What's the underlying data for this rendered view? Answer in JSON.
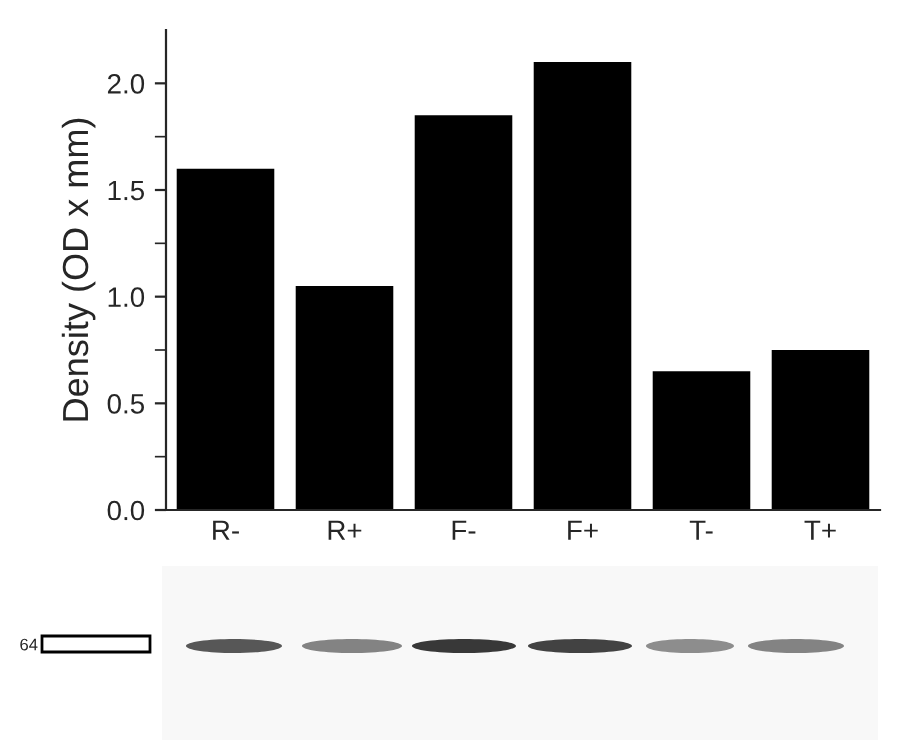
{
  "chart_data": {
    "type": "bar",
    "ylabel": "Density (OD x mm)",
    "categories": [
      "R-",
      "R+",
      "F-",
      "F+",
      "T-",
      "T+"
    ],
    "values": [
      1.6,
      1.05,
      1.85,
      2.1,
      0.65,
      0.75
    ],
    "color": "#000000",
    "ylim": [
      0,
      2.25
    ],
    "yticks": [
      {
        "value": 0,
        "label": "0.0"
      },
      {
        "value": 0.5,
        "label": "0.5"
      },
      {
        "value": 1,
        "label": "1.0"
      },
      {
        "value": 1.5,
        "label": "1.5"
      },
      {
        "value": 2,
        "label": "2.0"
      }
    ],
    "grid": false,
    "annotations": [
      "64"
    ]
  }
}
